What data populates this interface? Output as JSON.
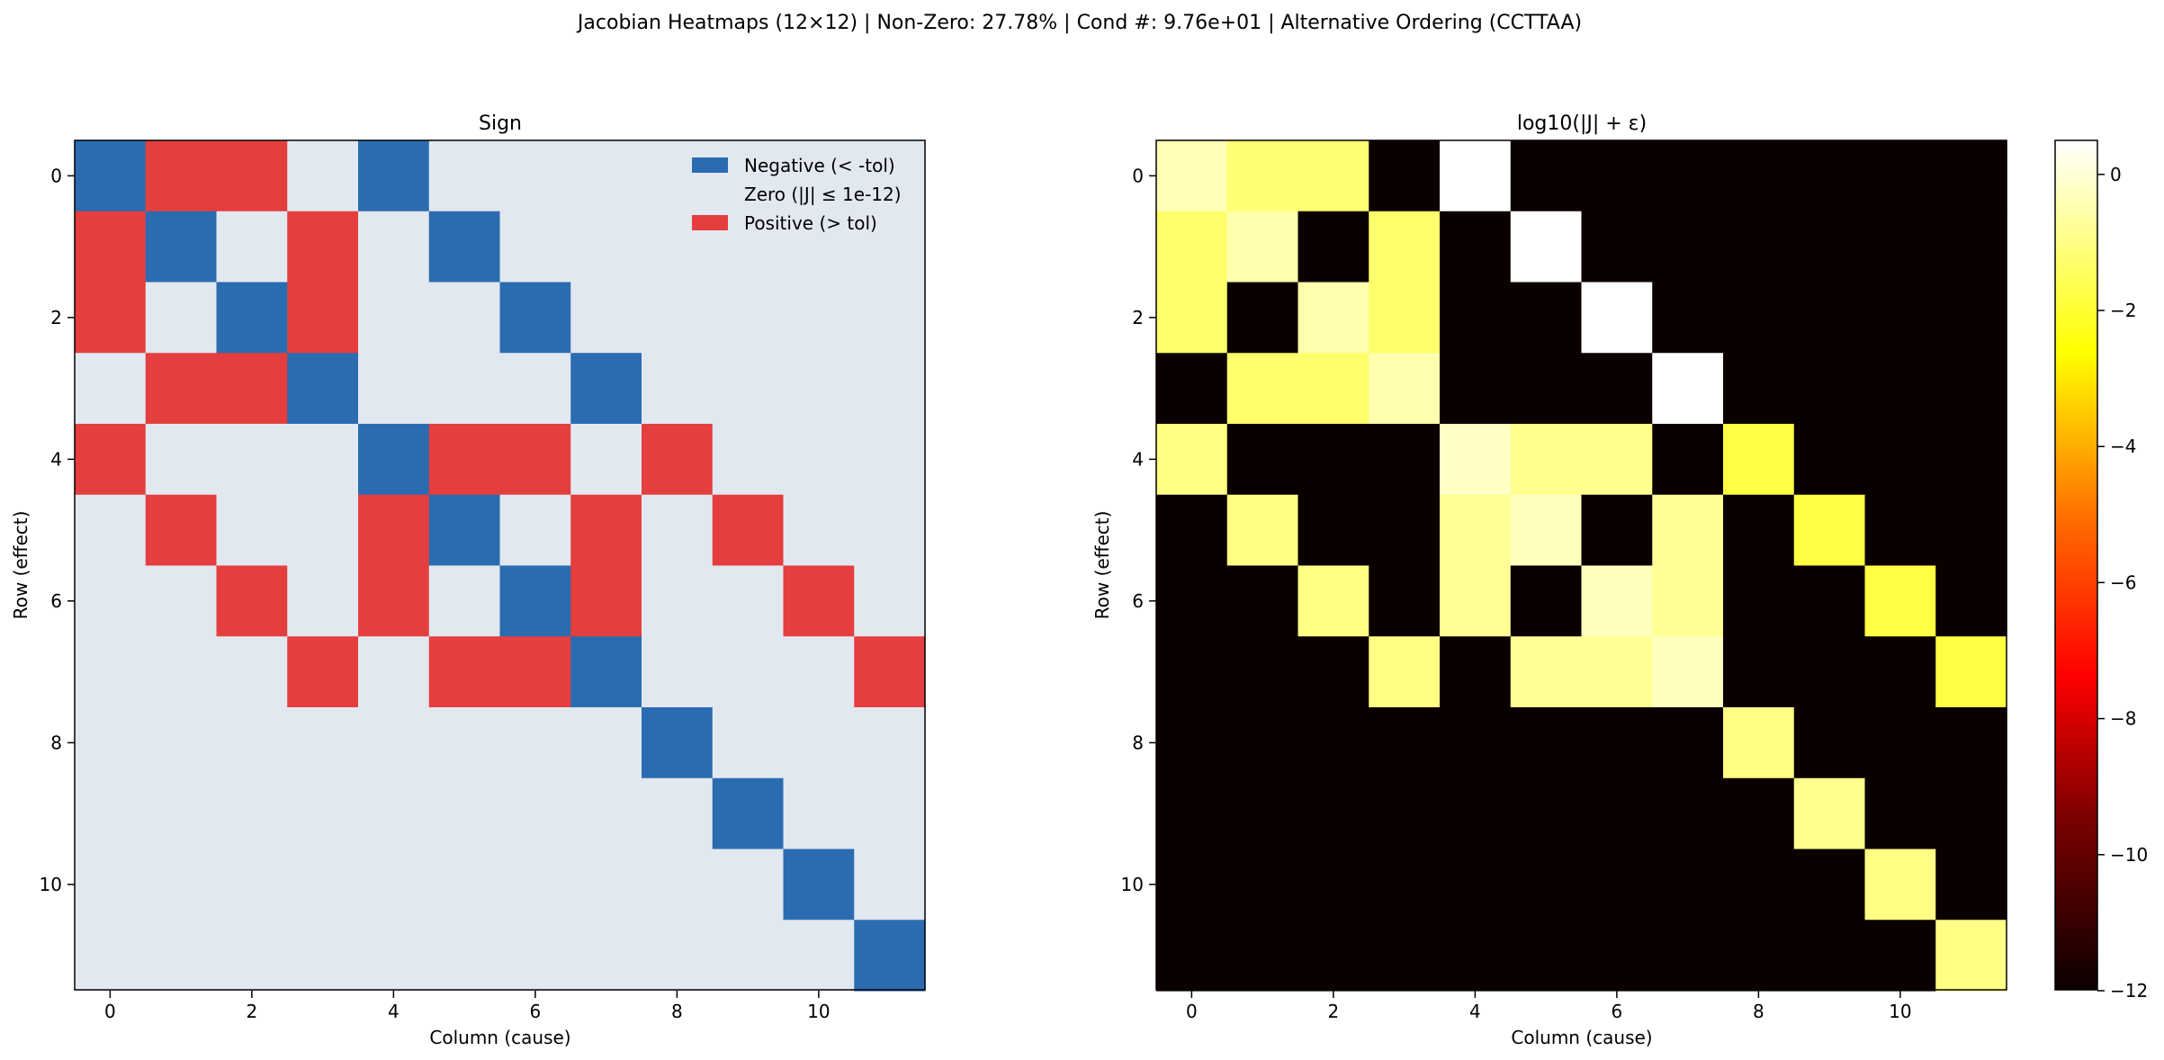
{
  "figure": {
    "suptitle": "Jacobian Heatmaps (12×12) | Non-Zero: 27.78% | Cond #: 9.76e+01 | Alternative Ordering (CCTTAA)"
  },
  "chart_data": [
    {
      "type": "heatmap",
      "title": "Sign",
      "xlabel": "Column (cause)",
      "ylabel": "Row (effect)",
      "x_ticks": [
        "0",
        "2",
        "4",
        "6",
        "8",
        "10"
      ],
      "y_ticks": [
        "0",
        "2",
        "4",
        "6",
        "8",
        "10"
      ],
      "colors": {
        "negative": "#2b6cb0",
        "zero": "#e2e8f0",
        "positive": "#e53e3e"
      },
      "legend": {
        "placement": "upper-right",
        "entries": [
          {
            "label": "Negative (< -tol)",
            "color": "#2b6cb0"
          },
          {
            "label": "Zero (|J| ≤ 1e-12)",
            "color": "#e2e8f0"
          },
          {
            "label": "Positive (> tol)",
            "color": "#e53e3e"
          }
        ]
      },
      "matrix": [
        [
          -1,
          1,
          1,
          0,
          -1,
          0,
          0,
          0,
          0,
          0,
          0,
          0
        ],
        [
          1,
          -1,
          0,
          1,
          0,
          -1,
          0,
          0,
          0,
          0,
          0,
          0
        ],
        [
          1,
          0,
          -1,
          1,
          0,
          0,
          -1,
          0,
          0,
          0,
          0,
          0
        ],
        [
          0,
          1,
          1,
          -1,
          0,
          0,
          0,
          -1,
          0,
          0,
          0,
          0
        ],
        [
          1,
          0,
          0,
          0,
          -1,
          1,
          1,
          0,
          1,
          0,
          0,
          0
        ],
        [
          0,
          1,
          0,
          0,
          1,
          -1,
          0,
          1,
          0,
          1,
          0,
          0
        ],
        [
          0,
          0,
          1,
          0,
          1,
          0,
          -1,
          1,
          0,
          0,
          1,
          0
        ],
        [
          0,
          0,
          0,
          1,
          0,
          1,
          1,
          -1,
          0,
          0,
          0,
          1
        ],
        [
          0,
          0,
          0,
          0,
          0,
          0,
          0,
          0,
          -1,
          0,
          0,
          0
        ],
        [
          0,
          0,
          0,
          0,
          0,
          0,
          0,
          0,
          0,
          -1,
          0,
          0
        ],
        [
          0,
          0,
          0,
          0,
          0,
          0,
          0,
          0,
          0,
          0,
          -1,
          0
        ],
        [
          0,
          0,
          0,
          0,
          0,
          0,
          0,
          0,
          0,
          0,
          0,
          -1
        ]
      ]
    },
    {
      "type": "heatmap",
      "title": "log10(|J| + ε)",
      "xlabel": "Column (cause)",
      "ylabel": "Row (effect)",
      "x_ticks": [
        "0",
        "2",
        "4",
        "6",
        "8",
        "10"
      ],
      "y_ticks": [
        "0",
        "2",
        "4",
        "6",
        "8",
        "10"
      ],
      "colormap": "hot",
      "vmin": -12,
      "vmax": 0.5,
      "colorbar_ticks": [
        0,
        -2,
        -4,
        -6,
        -8,
        -10,
        -12
      ],
      "colorbar_tick_labels": [
        "0",
        "−2",
        "−4",
        "−6",
        "−8",
        "−10",
        "−12"
      ],
      "matrix": [
        [
          -0.4,
          -1.2,
          -1.2,
          -12,
          0.5,
          -12,
          -12,
          -12,
          -12,
          -12,
          -12,
          -12
        ],
        [
          -1.3,
          -0.5,
          -12,
          -1.3,
          -12,
          0.5,
          -12,
          -12,
          -12,
          -12,
          -12,
          -12
        ],
        [
          -1.3,
          -12,
          -0.5,
          -1.3,
          -12,
          -12,
          0.5,
          -12,
          -12,
          -12,
          -12,
          -12
        ],
        [
          -12,
          -1.3,
          -1.3,
          -0.5,
          -12,
          -12,
          -12,
          0.5,
          -12,
          -12,
          -12,
          -12
        ],
        [
          -1.0,
          -12,
          -12,
          -12,
          -0.2,
          -0.9,
          -0.9,
          -12,
          -1.8,
          -12,
          -12,
          -12
        ],
        [
          -12,
          -1.0,
          -12,
          -12,
          -0.8,
          -0.3,
          -12,
          -0.8,
          -12,
          -1.8,
          -12,
          -12
        ],
        [
          -12,
          -12,
          -1.0,
          -12,
          -0.8,
          -12,
          -0.3,
          -0.8,
          -12,
          -12,
          -1.8,
          -12
        ],
        [
          -12,
          -12,
          -12,
          -1.0,
          -12,
          -0.8,
          -0.8,
          -0.3,
          -12,
          -12,
          -12,
          -1.8
        ],
        [
          -12,
          -12,
          -12,
          -12,
          -12,
          -12,
          -12,
          -12,
          -1.0,
          -12,
          -12,
          -12
        ],
        [
          -12,
          -12,
          -12,
          -12,
          -12,
          -12,
          -12,
          -12,
          -12,
          -0.9,
          -12,
          -12
        ],
        [
          -12,
          -12,
          -12,
          -12,
          -12,
          -12,
          -12,
          -12,
          -12,
          -12,
          -1.0,
          -12
        ],
        [
          -12,
          -12,
          -12,
          -12,
          -12,
          -12,
          -12,
          -12,
          -12,
          -12,
          -12,
          -1.0
        ]
      ]
    }
  ]
}
